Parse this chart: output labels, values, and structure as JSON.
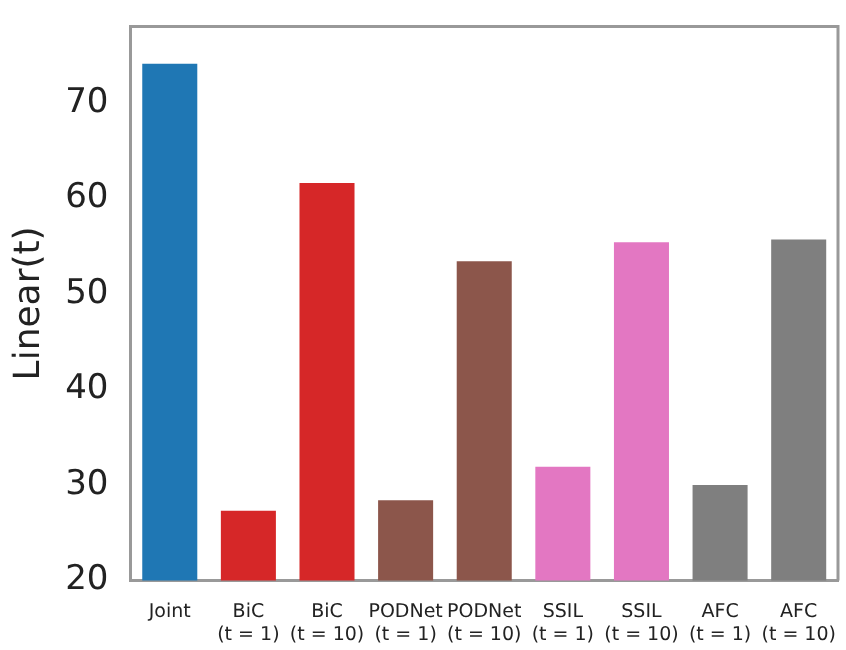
{
  "chart_data": {
    "type": "bar",
    "ylabel": "Linear(t)",
    "categories": [
      "Joint",
      "BiC (t = 1)",
      "BiC (t = 10)",
      "PODNet (t = 1)",
      "PODNet (t = 10)",
      "SSIL (t = 1)",
      "SSIL (t = 10)",
      "AFC (t = 1)",
      "AFC (t = 10)"
    ],
    "values": [
      74.1,
      27.3,
      61.6,
      28.4,
      53.4,
      31.9,
      55.4,
      30.0,
      55.7
    ],
    "colors": [
      "#1f77b4",
      "#d62728",
      "#d62728",
      "#8c564b",
      "#8c564b",
      "#e377c2",
      "#e377c2",
      "#7f7f7f",
      "#7f7f7f"
    ],
    "ylim": [
      20,
      78
    ],
    "yticks": [
      20,
      30,
      40,
      50,
      60,
      70
    ],
    "grid": false,
    "legend": false
  }
}
